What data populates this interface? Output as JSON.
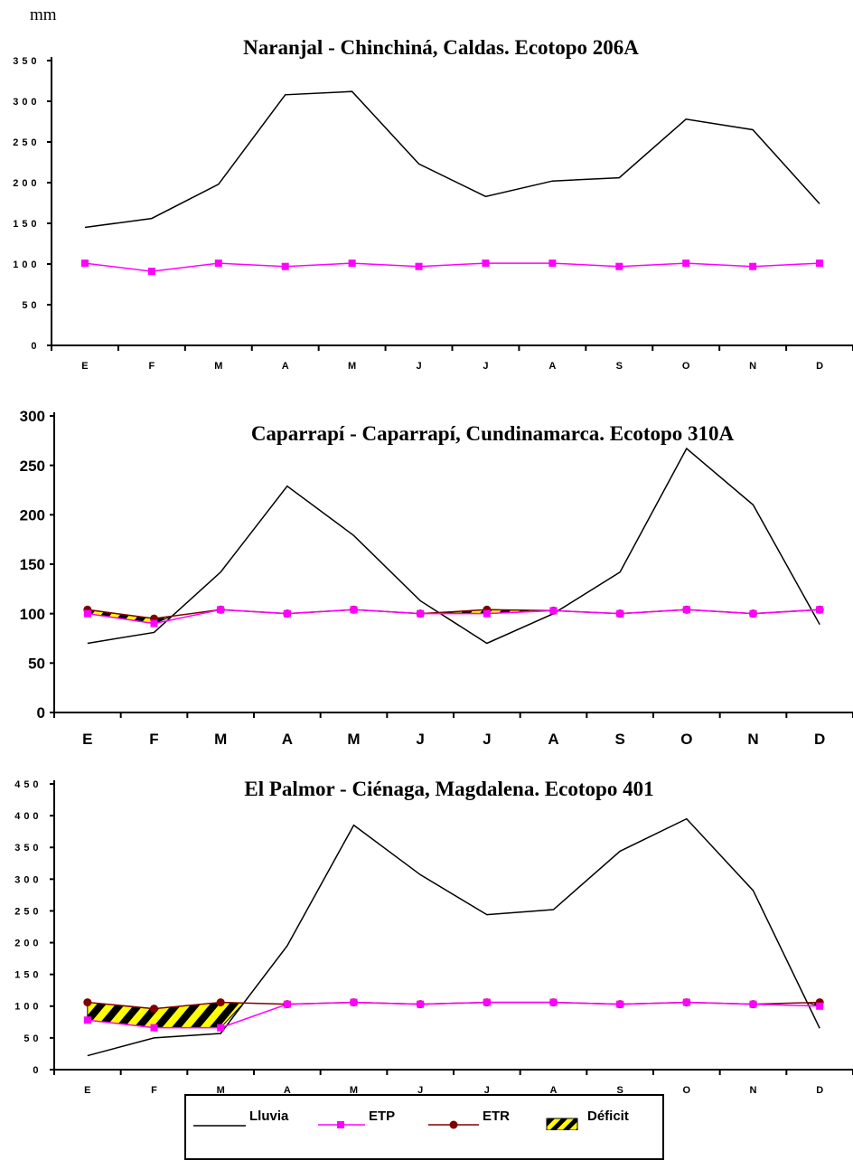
{
  "unit_label": "mm",
  "legend": {
    "lluvia": "Lluvia",
    "etp": "ETP",
    "etr": "ETR",
    "deficit": "Déficit"
  },
  "colors": {
    "lluvia": "#000000",
    "etp": "#ff00ff",
    "etr": "#800000",
    "deficit_a": "#ffff00",
    "deficit_b": "#000000"
  },
  "chart_data": [
    {
      "type": "line",
      "title": "Naranjal - Chinchiná, Caldas. Ecotopo 206A",
      "categories": [
        "E",
        "F",
        "M",
        "A",
        "M",
        "J",
        "J",
        "A",
        "S",
        "O",
        "N",
        "D"
      ],
      "ylim": [
        0,
        350
      ],
      "yticks": [
        0,
        50,
        100,
        150,
        200,
        250,
        300,
        350
      ],
      "series": [
        {
          "name": "Lluvia",
          "values": [
            145,
            156,
            198,
            308,
            312,
            223,
            183,
            202,
            206,
            278,
            265,
            174
          ]
        },
        {
          "name": "ETP",
          "values": [
            101,
            91,
            101,
            97,
            101,
            97,
            101,
            101,
            97,
            101,
            97,
            101
          ]
        }
      ]
    },
    {
      "type": "line",
      "title": "Caparrapí - Caparrapí, Cundinamarca. Ecotopo 310A",
      "categories": [
        "E",
        "F",
        "M",
        "A",
        "M",
        "J",
        "J",
        "A",
        "S",
        "O",
        "N",
        "D"
      ],
      "ylim": [
        0,
        300
      ],
      "yticks": [
        0,
        50,
        100,
        150,
        200,
        250,
        300
      ],
      "series": [
        {
          "name": "Lluvia",
          "values": [
            70,
            81,
            142,
            229,
            179,
            113,
            70,
            100,
            142,
            267,
            210,
            89
          ]
        },
        {
          "name": "ETP",
          "values": [
            100,
            90,
            104,
            100,
            104,
            100,
            100,
            103,
            100,
            104,
            100,
            104
          ]
        },
        {
          "name": "ETR",
          "values": [
            104,
            95,
            104,
            100,
            104,
            100,
            104,
            103,
            100,
            104,
            100,
            104
          ]
        }
      ]
    },
    {
      "type": "line",
      "title": "El Palmor - Ciénaga, Magdalena. Ecotopo 401",
      "categories": [
        "E",
        "F",
        "M",
        "A",
        "M",
        "J",
        "J",
        "A",
        "S",
        "O",
        "N",
        "D"
      ],
      "ylim": [
        0,
        450
      ],
      "yticks": [
        0,
        50,
        100,
        150,
        200,
        250,
        300,
        350,
        400,
        450
      ],
      "series": [
        {
          "name": "Lluvia",
          "values": [
            22,
            50,
            57,
            195,
            385,
            307,
            244,
            252,
            344,
            395,
            282,
            65
          ]
        },
        {
          "name": "ETP",
          "values": [
            78,
            66,
            66,
            103,
            106,
            103,
            106,
            106,
            103,
            106,
            103,
            100
          ]
        },
        {
          "name": "ETR",
          "values": [
            106,
            96,
            106,
            103,
            106,
            103,
            106,
            106,
            103,
            106,
            103,
            106
          ]
        }
      ]
    }
  ]
}
